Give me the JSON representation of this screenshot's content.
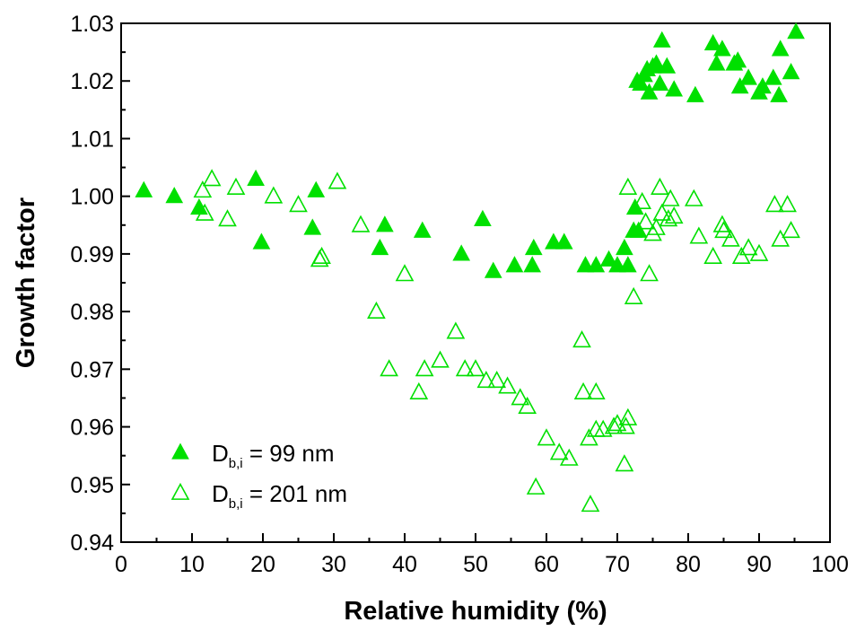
{
  "chart_data": {
    "type": "scatter",
    "xlabel": "Relative humidity (%)",
    "ylabel": "Growth factor",
    "xlim": [
      0,
      100
    ],
    "ylim": [
      0.94,
      1.03
    ],
    "x_ticks": [
      "0",
      "10",
      "20",
      "30",
      "40",
      "50",
      "60",
      "70",
      "80",
      "90",
      "100"
    ],
    "y_ticks": [
      "0.94",
      "0.95",
      "0.96",
      "0.97",
      "0.98",
      "0.99",
      "1.00",
      "1.01",
      "1.02",
      "1.03"
    ],
    "grid": false,
    "legend_position": "bottom-left",
    "series": [
      {
        "legend_main": "D",
        "legend_sub": "b,i",
        "legend_value": " = 99 nm",
        "marker": "filled-triangle",
        "color": "#00e000",
        "points": [
          [
            3.2,
            1.001
          ],
          [
            7.5,
            1.0
          ],
          [
            11,
            0.998
          ],
          [
            19,
            1.003
          ],
          [
            19.8,
            0.992
          ],
          [
            27,
            0.9945
          ],
          [
            27.5,
            1.001
          ],
          [
            36.5,
            0.991
          ],
          [
            37.2,
            0.995
          ],
          [
            42.5,
            0.994
          ],
          [
            48,
            0.99
          ],
          [
            51,
            0.996
          ],
          [
            52.5,
            0.987
          ],
          [
            55.5,
            0.988
          ],
          [
            58,
            0.988
          ],
          [
            58.2,
            0.991
          ],
          [
            61,
            0.992
          ],
          [
            62.5,
            0.992
          ],
          [
            65.5,
            0.988
          ],
          [
            67,
            0.988
          ],
          [
            68.8,
            0.989
          ],
          [
            70,
            0.988
          ],
          [
            71,
            0.991
          ],
          [
            71.5,
            0.988
          ],
          [
            72.3,
            0.994
          ],
          [
            72.5,
            0.998
          ],
          [
            73,
            0.994
          ],
          [
            72.8,
            1.02
          ],
          [
            73.3,
            1.0195
          ],
          [
            73.8,
            1.021
          ],
          [
            74.2,
            1.022
          ],
          [
            74.5,
            1.018
          ],
          [
            75,
            1.0225
          ],
          [
            75.5,
            1.023
          ],
          [
            76,
            1.0195
          ],
          [
            76.3,
            1.027
          ],
          [
            77,
            1.0225
          ],
          [
            78,
            1.0185
          ],
          [
            81,
            1.0175
          ],
          [
            83.5,
            1.0265
          ],
          [
            84,
            1.023
          ],
          [
            84.8,
            1.0255
          ],
          [
            86.5,
            1.023
          ],
          [
            87,
            1.0235
          ],
          [
            87.3,
            1.019
          ],
          [
            88.5,
            1.0205
          ],
          [
            90,
            1.018
          ],
          [
            90.5,
            1.019
          ],
          [
            92,
            1.0205
          ],
          [
            92.8,
            1.0175
          ],
          [
            93,
            1.0255
          ],
          [
            94.5,
            1.0215
          ],
          [
            95.2,
            1.0285
          ]
        ]
      },
      {
        "legend_main": "D",
        "legend_sub": "b,i",
        "legend_value": " = 201 nm",
        "marker": "open-triangle",
        "color": "#00e000",
        "points": [
          [
            11.5,
            1.001
          ],
          [
            11.8,
            0.997
          ],
          [
            12.8,
            1.003
          ],
          [
            15,
            0.996
          ],
          [
            16.2,
            1.0015
          ],
          [
            21.5,
            1.0
          ],
          [
            25,
            0.9985
          ],
          [
            28,
            0.989
          ],
          [
            28.3,
            0.9895
          ],
          [
            30.5,
            1.0025
          ],
          [
            33.8,
            0.995
          ],
          [
            36,
            0.98
          ],
          [
            37.8,
            0.97
          ],
          [
            40,
            0.9865
          ],
          [
            42,
            0.966
          ],
          [
            42.8,
            0.97
          ],
          [
            45,
            0.9715
          ],
          [
            47.2,
            0.9765
          ],
          [
            48.5,
            0.97
          ],
          [
            50,
            0.97
          ],
          [
            51.5,
            0.968
          ],
          [
            53,
            0.968
          ],
          [
            54.5,
            0.967
          ],
          [
            56.3,
            0.965
          ],
          [
            57.3,
            0.9635
          ],
          [
            58.5,
            0.9495
          ],
          [
            60,
            0.958
          ],
          [
            61.8,
            0.9555
          ],
          [
            63.2,
            0.9545
          ],
          [
            65,
            0.975
          ],
          [
            65.2,
            0.966
          ],
          [
            66,
            0.958
          ],
          [
            66.2,
            0.9465
          ],
          [
            67,
            0.966
          ],
          [
            67,
            0.9595
          ],
          [
            68,
            0.9595
          ],
          [
            69.5,
            0.96
          ],
          [
            70,
            0.9605
          ],
          [
            71,
            0.9535
          ],
          [
            71.2,
            0.96
          ],
          [
            71.5,
            0.9615
          ],
          [
            71.5,
            1.0015
          ],
          [
            72.3,
            0.9825
          ],
          [
            73.5,
            0.999
          ],
          [
            74,
            0.9955
          ],
          [
            74.5,
            0.9865
          ],
          [
            75,
            0.9935
          ],
          [
            75.5,
            0.9945
          ],
          [
            76,
            1.0015
          ],
          [
            76.3,
            0.997
          ],
          [
            77.2,
            0.996
          ],
          [
            77.5,
            0.9995
          ],
          [
            78,
            0.9965
          ],
          [
            80.8,
            0.9995
          ],
          [
            81.5,
            0.993
          ],
          [
            83.5,
            0.9895
          ],
          [
            84.8,
            0.995
          ],
          [
            85,
            0.994
          ],
          [
            86,
            0.9925
          ],
          [
            87.5,
            0.9895
          ],
          [
            88.5,
            0.991
          ],
          [
            90,
            0.99
          ],
          [
            92.2,
            0.9985
          ],
          [
            93,
            0.9925
          ],
          [
            94,
            0.9985
          ],
          [
            94.5,
            0.994
          ]
        ]
      }
    ]
  }
}
